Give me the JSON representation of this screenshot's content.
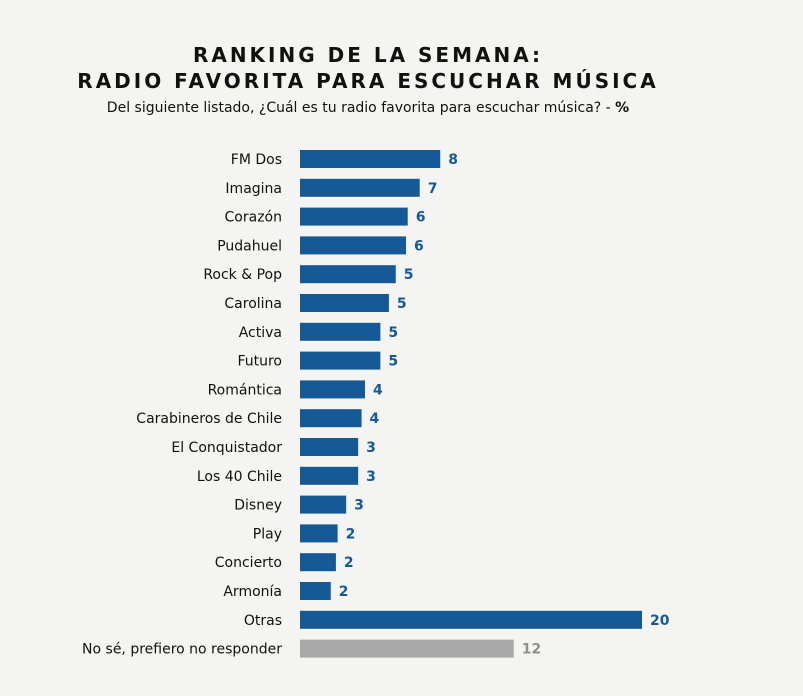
{
  "title_line1": "RANKING DE LA SEMANA:",
  "title_line2": "RADIO FAVORITA PARA ESCUCHAR MÚSICA",
  "subtitle": "Del siguiente listado, ¿Cuál es tu radio favorita para escuchar música? -",
  "subtitle_unit": "%",
  "colors": {
    "primary": "#155a96",
    "secondary": "#a9a9a9",
    "primary_label": "#155a96",
    "secondary_label": "#8f8f8f"
  },
  "chart_data": {
    "type": "bar",
    "orientation": "horizontal",
    "categories": [
      "FM Dos",
      "Imagina",
      "Corazón",
      "Pudahuel",
      "Rock & Pop",
      "Carolina",
      "Activa",
      "Futuro",
      "Romántica",
      "Carabineros de Chile",
      "El Conquistador",
      "Los 40 Chile",
      "Disney",
      "Play",
      "Concierto",
      "Armonía",
      "Otras",
      "No sé, prefiero no responder"
    ],
    "values": [
      8,
      7,
      6,
      6,
      5,
      5,
      5,
      5,
      4,
      4,
      3,
      3,
      3,
      2,
      2,
      2,
      20,
      12
    ],
    "bar_lengths": [
      8.2,
      7.0,
      6.3,
      6.2,
      5.6,
      5.2,
      4.7,
      4.7,
      3.8,
      3.6,
      3.4,
      3.4,
      2.7,
      2.2,
      2.1,
      1.8,
      20,
      12.5
    ],
    "highlight": [
      false,
      false,
      false,
      false,
      false,
      false,
      false,
      false,
      false,
      false,
      false,
      false,
      false,
      false,
      false,
      false,
      false,
      true
    ],
    "xlabel": "",
    "ylabel": "",
    "xlim": [
      0,
      20
    ],
    "grid": false,
    "legend": "none"
  }
}
